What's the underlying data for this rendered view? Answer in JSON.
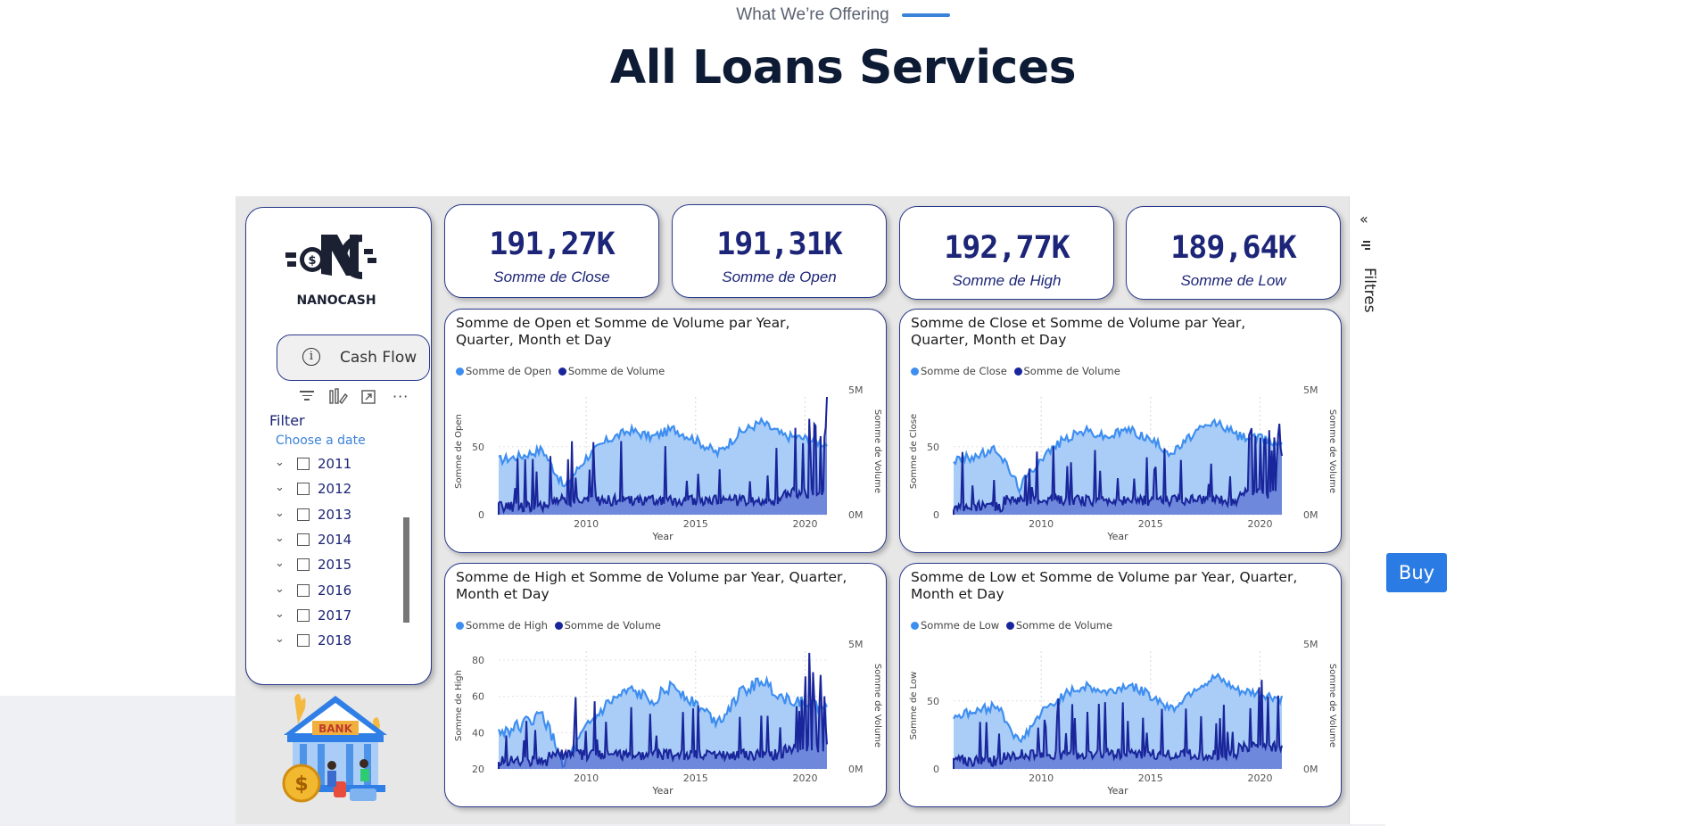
{
  "section": {
    "eyebrow": "What We’re Offering",
    "title": "All Loans Services"
  },
  "kpis": [
    {
      "value": "191,27K",
      "label": "Somme de Close"
    },
    {
      "value": "191,31K",
      "label": "Somme de Open"
    },
    {
      "value": "192,77K",
      "label": "Somme de High"
    },
    {
      "value": "189,64K",
      "label": "Somme de Low"
    }
  ],
  "logo": {
    "text": "NANOCASH"
  },
  "cashflow": {
    "label": "Cash Flow",
    "icon": "info-icon"
  },
  "filter": {
    "title": "Filter",
    "subtitle": "Choose a date",
    "years": [
      "2011",
      "2012",
      "2013",
      "2014",
      "2015",
      "2016",
      "2017",
      "2018"
    ]
  },
  "panel": {
    "filters_label": "Filtres",
    "collapse_icon": "double-chevron-left-icon"
  },
  "buy_button": {
    "label": "Buy"
  },
  "bank_illustration": {
    "sign": "BANK",
    "coin": "$"
  },
  "colors": {
    "open_series": "#3e8ef0",
    "volume_series": "#19259a",
    "card_border": "#2a3a8c",
    "accent": "#2b7be4"
  },
  "chart_data": [
    {
      "type": "area",
      "title": "Somme de Open et Somme de Volume par Year, Quarter, Month et Day",
      "series": [
        {
          "name": "Somme de Open",
          "axis": "left"
        },
        {
          "name": "Somme de Volume",
          "axis": "right"
        }
      ],
      "xlabel": "Year",
      "ylabel": "Somme de Open",
      "y2label": "Somme de Volume",
      "x_ticks": [
        "2010",
        "2015",
        "2020"
      ],
      "y_ticks": [
        "0",
        "50"
      ],
      "y2_ticks": [
        "0M",
        "5M"
      ],
      "legend": "top-left",
      "x_range": [
        2006,
        2021
      ],
      "trend": {
        "x": [
          2006,
          2007,
          2008,
          2009,
          2010,
          2011,
          2012,
          2013,
          2014,
          2015,
          2016,
          2017,
          2018,
          2019,
          2020,
          2021
        ],
        "y": [
          40,
          43,
          48,
          20,
          42,
          55,
          62,
          57,
          63,
          55,
          45,
          60,
          68,
          58,
          56,
          52
        ]
      }
    },
    {
      "type": "area",
      "title": "Somme de Close et Somme de Volume par Year, Quarter, Month et Day",
      "series": [
        {
          "name": "Somme de Close",
          "axis": "left"
        },
        {
          "name": "Somme de Volume",
          "axis": "right"
        }
      ],
      "xlabel": "Year",
      "ylabel": "Somme de Close",
      "y2label": "Somme de Volume",
      "x_ticks": [
        "2010",
        "2015",
        "2020"
      ],
      "y_ticks": [
        "0",
        "50"
      ],
      "y2_ticks": [
        "0M",
        "5M"
      ],
      "legend": "top-left",
      "x_range": [
        2006,
        2021
      ],
      "trend": {
        "x": [
          2006,
          2007,
          2008,
          2009,
          2010,
          2011,
          2012,
          2013,
          2014,
          2015,
          2016,
          2017,
          2018,
          2019,
          2020,
          2021
        ],
        "y": [
          40,
          43,
          48,
          20,
          42,
          55,
          62,
          57,
          63,
          55,
          45,
          60,
          68,
          58,
          56,
          52
        ]
      }
    },
    {
      "type": "area",
      "title": "Somme de High et Somme de Volume par Year, Quarter, Month et Day",
      "series": [
        {
          "name": "Somme de High",
          "axis": "left"
        },
        {
          "name": "Somme de Volume",
          "axis": "right"
        }
      ],
      "xlabel": "Year",
      "ylabel": "Somme de High",
      "y2label": "Somme de Volume",
      "x_ticks": [
        "2010",
        "2015",
        "2020"
      ],
      "y_ticks": [
        "20",
        "40",
        "60",
        "80"
      ],
      "y2_ticks": [
        "0M",
        "5M"
      ],
      "legend": "top-left",
      "x_range": [
        2006,
        2021
      ],
      "trend": {
        "x": [
          2006,
          2007,
          2008,
          2009,
          2010,
          2011,
          2012,
          2013,
          2014,
          2015,
          2016,
          2017,
          2018,
          2019,
          2020,
          2021
        ],
        "y": [
          40,
          44,
          50,
          22,
          42,
          56,
          63,
          58,
          66,
          56,
          46,
          61,
          69,
          59,
          57,
          53
        ]
      }
    },
    {
      "type": "area",
      "title": "Somme de Low et Somme de Volume par Year, Quarter, Month et Day",
      "series": [
        {
          "name": "Somme de Low",
          "axis": "left"
        },
        {
          "name": "Somme de Volume",
          "axis": "right"
        }
      ],
      "xlabel": "Year",
      "ylabel": "Somme de Low",
      "y2label": "Somme de Volume",
      "x_ticks": [
        "2010",
        "2015",
        "2020"
      ],
      "y_ticks": [
        "0",
        "50"
      ],
      "y2_ticks": [
        "0M",
        "5M"
      ],
      "legend": "top-left",
      "x_range": [
        2006,
        2021
      ],
      "trend": {
        "x": [
          2006,
          2007,
          2008,
          2009,
          2010,
          2011,
          2012,
          2013,
          2014,
          2015,
          2016,
          2017,
          2018,
          2019,
          2020,
          2021
        ],
        "y": [
          39,
          42,
          47,
          19,
          41,
          54,
          61,
          56,
          62,
          54,
          44,
          59,
          67,
          57,
          55,
          51
        ]
      }
    }
  ]
}
